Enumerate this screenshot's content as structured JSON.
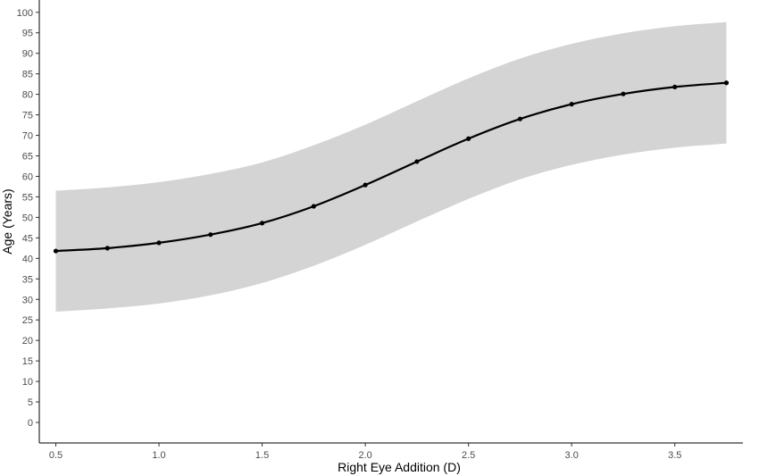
{
  "chart_data": {
    "type": "line",
    "title": "",
    "xlabel": "Right Eye Addition (D)",
    "ylabel": "Age (Years)",
    "xlim": [
      0.42,
      3.83
    ],
    "ylim": [
      -5,
      103
    ],
    "x_ticks": [
      0.5,
      1.0,
      1.5,
      2.0,
      2.5,
      3.0,
      3.5
    ],
    "x_tick_labels": [
      "0.5",
      "1.0",
      "1.5",
      "2.0",
      "2.5",
      "3.0",
      "3.5"
    ],
    "y_ticks": [
      0,
      5,
      10,
      15,
      20,
      25,
      30,
      35,
      40,
      45,
      50,
      55,
      60,
      65,
      70,
      75,
      80,
      85,
      90,
      95,
      100
    ],
    "y_tick_labels": [
      "0",
      "5",
      "10",
      "15",
      "20",
      "25",
      "30",
      "35",
      "40",
      "45",
      "50",
      "55",
      "60",
      "65",
      "70",
      "75",
      "80",
      "85",
      "90",
      "95",
      "100"
    ],
    "grid": false,
    "series": [
      {
        "x": [
          0.5,
          0.75,
          1.0,
          1.25,
          1.5,
          1.75,
          2.0,
          2.25,
          2.5,
          2.75,
          3.0,
          3.25,
          3.5,
          3.75
        ],
        "y": [
          41.8,
          42.5,
          43.8,
          45.8,
          48.6,
          52.7,
          57.9,
          63.6,
          69.2,
          74.0,
          77.6,
          80.1,
          81.8,
          82.8
        ],
        "lower": [
          27.0,
          27.8,
          29.0,
          31.0,
          34.0,
          38.2,
          43.3,
          49.0,
          54.5,
          59.3,
          62.8,
          65.3,
          67.0,
          68.0
        ],
        "upper": [
          56.5,
          57.3,
          58.6,
          60.6,
          63.4,
          67.6,
          72.6,
          78.3,
          83.9,
          88.7,
          92.3,
          94.9,
          96.6,
          97.6
        ]
      }
    ],
    "colors": {
      "line": "#000000",
      "band": "#d4d4d4",
      "points": "#000000"
    }
  }
}
